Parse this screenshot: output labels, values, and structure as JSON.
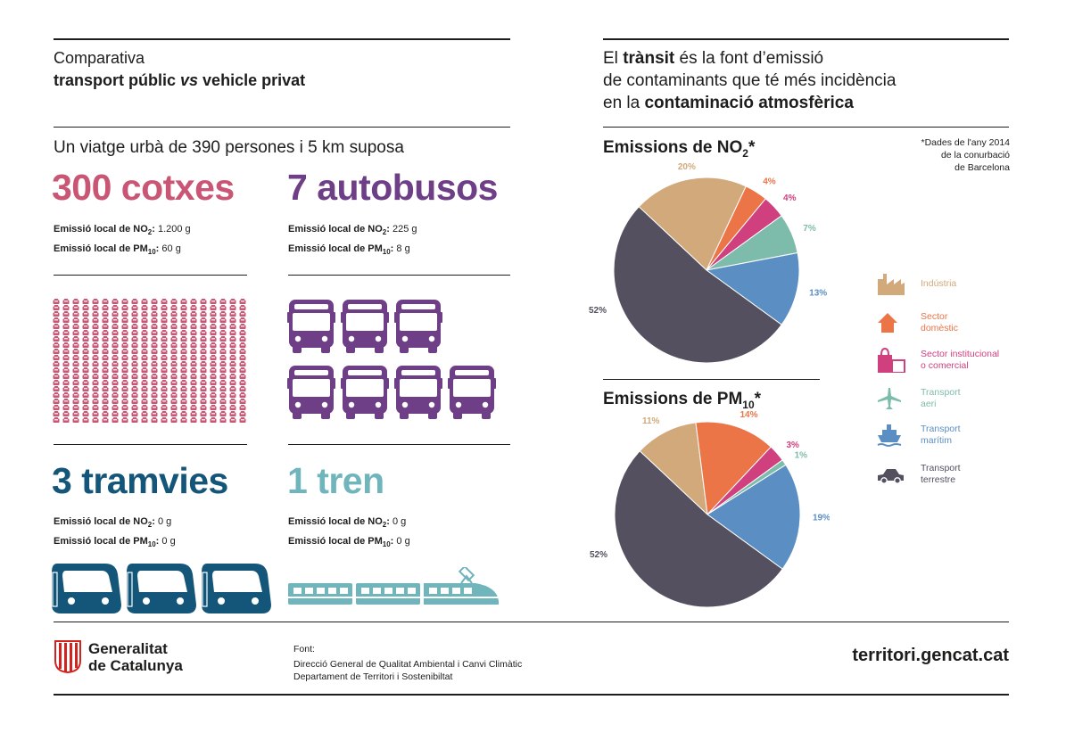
{
  "left": {
    "heading_line1": "Comparativa",
    "heading_line2_a": "transport públic ",
    "heading_line2_vs": "vs",
    "heading_line2_b": " vehicle privat",
    "trip": "Un viatge urbà de 390 persones i 5 km suposa",
    "blocks": [
      {
        "title": "300 cotxes",
        "color": "#c95674",
        "no2_label": "Emissió local de NO",
        "no2_value": "1.200 g",
        "pm_label": "Emissió local de PM",
        "pm_value": "60 g"
      },
      {
        "title": "7 autobusos",
        "color": "#6e3e87",
        "no2_label": "Emissió local de NO",
        "no2_value": "225 g",
        "pm_label": "Emissió local de PM",
        "pm_value": "8 g"
      },
      {
        "title": "3 tramvies",
        "color": "#145679",
        "no2_label": "Emissió local de NO",
        "no2_value": "0 g",
        "pm_label": "Emissió local de PM",
        "pm_value": "0 g"
      },
      {
        "title": "1 tren",
        "color": "#6fb5bb",
        "no2_label": "Emissió local de NO",
        "no2_value": "0 g",
        "pm_label": "Emissió local de PM",
        "pm_value": "0 g"
      }
    ],
    "sub_no2": "2",
    "sub_pm": "10",
    "colon": ":"
  },
  "right": {
    "h_p1": "El ",
    "h_b1": "trànsit",
    "h_p2": " és la font d’emissió",
    "h_line2": "de contaminants que té més incidència",
    "h_p3": "en la ",
    "h_b2": "contaminació atmosfèrica",
    "note": [
      "*Dades de l'any 2014",
      "de la conurbació",
      "de Barcelona"
    ],
    "legend": [
      {
        "label1": "Indústria",
        "label2": "",
        "color": "#d2a97a",
        "icon": "factory-icon"
      },
      {
        "label1": "Sector",
        "label2": "domèstic",
        "color": "#eb7547",
        "icon": "house-icon"
      },
      {
        "label1": "Sector institucional",
        "label2": "o comercial",
        "color": "#d0407e",
        "icon": "shopping-bag-icon"
      },
      {
        "label1": "Transport",
        "label2": "aeri",
        "color": "#7dbcab",
        "icon": "airplane-icon"
      },
      {
        "label1": "Transport",
        "label2": "marítim",
        "color": "#5b8fc4",
        "icon": "ship-icon"
      },
      {
        "label1": "Transport",
        "label2": "terrestre",
        "color": "#54505f",
        "icon": "car-icon"
      }
    ]
  },
  "chart_data": [
    {
      "type": "pie",
      "title": "Emissions de NO",
      "title_sub": "2",
      "title_suffix": "*",
      "categories": [
        "Indústria",
        "Sector domèstic",
        "Sector institucional o comercial",
        "Transport aeri",
        "Transport marítim",
        "Transport terrestre"
      ],
      "values": [
        20,
        4,
        4,
        7,
        13,
        52
      ],
      "labels": [
        "20%",
        "4%",
        "4%",
        "7%",
        "13%",
        "52%"
      ],
      "colors": [
        "#d2a97a",
        "#eb7547",
        "#d0407e",
        "#7dbcab",
        "#5b8fc4",
        "#54505f"
      ]
    },
    {
      "type": "pie",
      "title": "Emissions de PM",
      "title_sub": "10",
      "title_suffix": "*",
      "categories": [
        "Indústria",
        "Sector domèstic",
        "Sector institucional o comercial",
        "Transport aeri",
        "Transport marítim",
        "Transport terrestre"
      ],
      "values": [
        11,
        14,
        3,
        1,
        19,
        52
      ],
      "labels": [
        "11%",
        "14%",
        "3%",
        "1%",
        "19%",
        "52%"
      ],
      "colors": [
        "#d2a97a",
        "#eb7547",
        "#d0407e",
        "#7dbcab",
        "#5b8fc4",
        "#54505f"
      ]
    }
  ],
  "footer": {
    "logo_line1": "Generalitat",
    "logo_line2": "de Catalunya",
    "font_label": "Font:",
    "source1": "Direcció General de Qualitat Ambiental i Canvi Climàtic",
    "source2": "Departament de Territori i Sostenibiltat",
    "website": "territori.gencat.cat"
  }
}
